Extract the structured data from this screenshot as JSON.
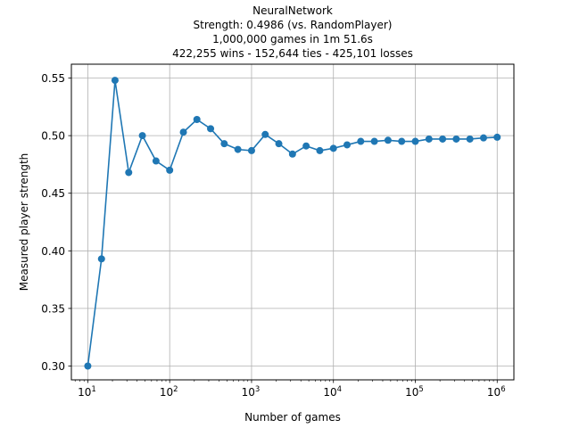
{
  "chart_data": {
    "type": "line",
    "title_lines": [
      "NeuralNetwork",
      "Strength: 0.4986 (vs. RandomPlayer)",
      "1,000,000 games in 1m 51.6s",
      "422,255 wins - 152,644 ties - 425,101 losses"
    ],
    "xlabel": "Number of games",
    "ylabel": "Measured player strength",
    "xscale": "log",
    "xlim": [
      6.3,
      1600000
    ],
    "ylim": [
      0.288,
      0.562
    ],
    "grid": true,
    "x_ticks": [
      {
        "value": 10,
        "base": "10",
        "exp": "1"
      },
      {
        "value": 100,
        "base": "10",
        "exp": "2"
      },
      {
        "value": 1000,
        "base": "10",
        "exp": "3"
      },
      {
        "value": 10000,
        "base": "10",
        "exp": "4"
      },
      {
        "value": 100000,
        "base": "10",
        "exp": "5"
      },
      {
        "value": 1000000,
        "base": "10",
        "exp": "6"
      }
    ],
    "y_ticks": [
      {
        "value": 0.3,
        "label": "0.30"
      },
      {
        "value": 0.35,
        "label": "0.35"
      },
      {
        "value": 0.4,
        "label": "0.40"
      },
      {
        "value": 0.45,
        "label": "0.45"
      },
      {
        "value": 0.5,
        "label": "0.50"
      },
      {
        "value": 0.55,
        "label": "0.55"
      }
    ],
    "color": "#1f77b4",
    "series": [
      {
        "x": [
          10,
          14.7,
          21.5,
          31.6,
          46.4,
          68.1,
          100,
          147,
          215,
          316,
          464,
          681,
          1000,
          1468,
          2154,
          3162,
          4642,
          6813,
          10000,
          14678,
          21544,
          31623,
          46416,
          68129,
          100000,
          146780,
          215443,
          316228,
          464159,
          681292,
          1000000
        ],
        "y": [
          0.3,
          0.393,
          0.548,
          0.468,
          0.5,
          0.478,
          0.47,
          0.503,
          0.514,
          0.506,
          0.493,
          0.488,
          0.487,
          0.501,
          0.493,
          0.484,
          0.491,
          0.487,
          0.489,
          0.492,
          0.495,
          0.495,
          0.496,
          0.495,
          0.495,
          0.497,
          0.497,
          0.497,
          0.497,
          0.498,
          0.4986
        ]
      }
    ]
  }
}
